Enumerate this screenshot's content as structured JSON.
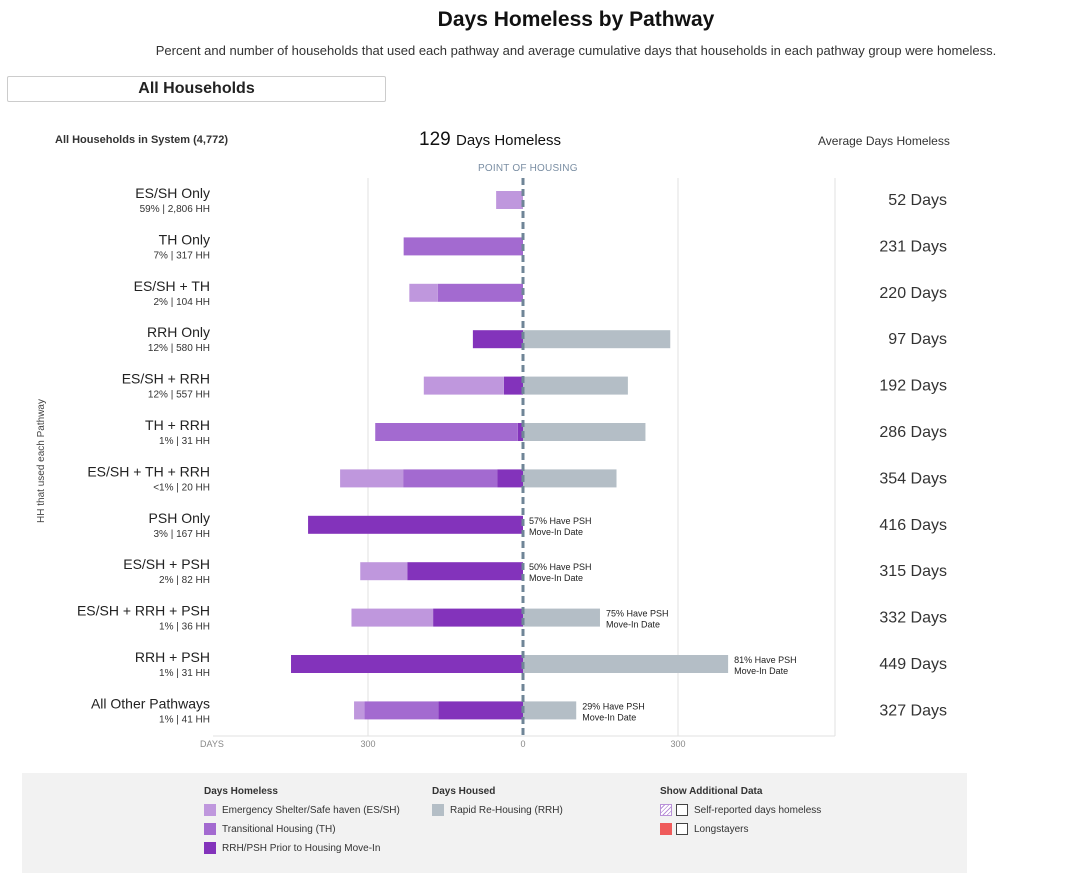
{
  "title": "Days Homeless by Pathway",
  "subtitle": "Percent and number of households that used each pathway and average cumulative days that households in each pathway group were homeless.",
  "filter": {
    "selected": "All Households"
  },
  "header": {
    "left": "All Households in System (4,772)",
    "mid_value": "129",
    "mid_unit": "Days Homeless",
    "right": "Average Days Homeless"
  },
  "point_of_housing_label": "POINT OF HOUSING",
  "colors": {
    "es": "#bf97dd",
    "th": "#a36ad0",
    "pre": "#8333bb",
    "rrh": "#b4bec6",
    "refline": "#6f8597",
    "grid": "#e2e2e2",
    "longstayers": "#ef5b5b"
  },
  "chart_data": {
    "type": "bar",
    "orientation": "horizontal-diverging",
    "ylabel": "HH that used each Pathway",
    "x_ticks_homeless": [
      "DAYS",
      "300",
      "0"
    ],
    "x_ticks_housed": [
      "300"
    ],
    "xlim_homeless": [
      0,
      500
    ],
    "xlim_housed": [
      0,
      600
    ],
    "tick_values": [
      300,
      0,
      300
    ],
    "categories": [
      {
        "name": "ES/SH Only",
        "sub": "59% | 2,806 HH",
        "avg": "52 Days",
        "es": 52,
        "th": 0,
        "pre": 0,
        "rrh": 0,
        "psh_note": ""
      },
      {
        "name": "TH Only",
        "sub": "7% | 317 HH",
        "avg": "231 Days",
        "es": 0,
        "th": 231,
        "pre": 0,
        "rrh": 0,
        "psh_note": ""
      },
      {
        "name": "ES/SH + TH",
        "sub": "2% | 104 HH",
        "avg": "220 Days",
        "es": 55,
        "th": 165,
        "pre": 0,
        "rrh": 0,
        "psh_note": ""
      },
      {
        "name": "RRH Only",
        "sub": "12% | 580 HH",
        "avg": "97 Days",
        "es": 0,
        "th": 0,
        "pre": 97,
        "rrh": 285,
        "psh_note": ""
      },
      {
        "name": "ES/SH + RRH",
        "sub": "12% | 557 HH",
        "avg": "192 Days",
        "es": 155,
        "th": 0,
        "pre": 37,
        "rrh": 203,
        "psh_note": ""
      },
      {
        "name": "TH + RRH",
        "sub": "1% | 31 HH",
        "avg": "286 Days",
        "es": 0,
        "th": 276,
        "pre": 10,
        "rrh": 237,
        "psh_note": ""
      },
      {
        "name": "ES/SH + TH + RRH",
        "sub": "<1% | 20 HH",
        "avg": "354 Days",
        "es": 122,
        "th": 182,
        "pre": 50,
        "rrh": 181,
        "psh_note": ""
      },
      {
        "name": "PSH Only",
        "sub": "3% | 167 HH",
        "avg": "416 Days",
        "es": 0,
        "th": 0,
        "pre": 416,
        "rrh": 0,
        "psh_note": "57% Have PSH\nMove-In Date"
      },
      {
        "name": "ES/SH + PSH",
        "sub": "2% | 82 HH",
        "avg": "315 Days",
        "es": 91,
        "th": 0,
        "pre": 224,
        "rrh": 0,
        "psh_note": "50% Have PSH\nMove-In Date"
      },
      {
        "name": "ES/SH + RRH + PSH",
        "sub": "1% | 36 HH",
        "avg": "332 Days",
        "es": 158,
        "th": 0,
        "pre": 174,
        "rrh": 149,
        "psh_note": "75% Have PSH\nMove-In Date"
      },
      {
        "name": "RRH + PSH",
        "sub": "1% | 31 HH",
        "avg": "449 Days",
        "es": 0,
        "th": 0,
        "pre": 449,
        "rrh": 397,
        "psh_note": "81% Have PSH\nMove-In Date"
      },
      {
        "name": "All Other Pathways",
        "sub": "1% | 41 HH",
        "avg": "327 Days",
        "es": 20,
        "th": 143,
        "pre": 164,
        "rrh": 103,
        "psh_note": "29% Have PSH\nMove-In Date"
      }
    ]
  },
  "legend": {
    "homeless_title": "Days Homeless",
    "homeless_items": [
      {
        "label": "Emergency Shelter/Safe haven (ES/SH)",
        "color": "#bf97dd"
      },
      {
        "label": "Transitional Housing (TH)",
        "color": "#a36ad0"
      },
      {
        "label": "RRH/PSH Prior to Housing Move-In",
        "color": "#8333bb"
      }
    ],
    "housed_title": "Days Housed",
    "housed_items": [
      {
        "label": "Rapid Re-Housing (RRH)",
        "color": "#b4bec6"
      }
    ],
    "additional_title": "Show Additional Data",
    "additional_items": [
      {
        "label": "Self-reported days homeless",
        "icon": "hatch-swatch-icon"
      },
      {
        "label": "Longstayers",
        "color": "#ef5b5b"
      }
    ]
  }
}
